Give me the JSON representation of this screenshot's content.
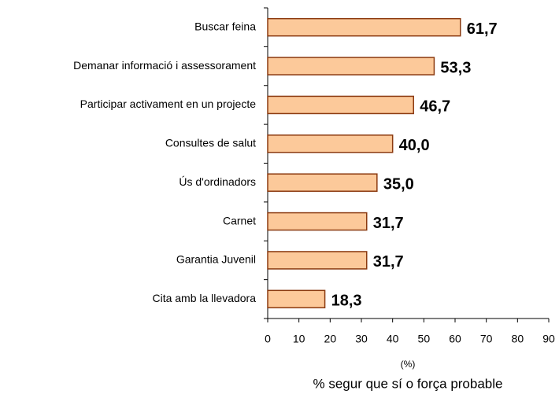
{
  "chart_data": {
    "type": "bar",
    "orientation": "horizontal",
    "categories": [
      "Buscar feina",
      "Demanar informació i assessorament",
      "Participar activament en un projecte",
      "Consultes de salut",
      "Ús d'ordinadors",
      "Carnet",
      "Garantia Juvenil",
      "Cita amb la llevadora"
    ],
    "values": [
      61.7,
      53.3,
      46.7,
      40.0,
      35.0,
      31.7,
      31.7,
      18.3
    ],
    "value_labels": [
      "61,7",
      "53,3",
      "46,7",
      "40,0",
      "35,0",
      "31,7",
      "31,7",
      "18,3"
    ],
    "color": "#fcc99a",
    "edgecolor": "#8b3a10",
    "xlim": [
      0,
      90
    ],
    "xticks": [
      0,
      10,
      20,
      30,
      40,
      50,
      60,
      70,
      80,
      90
    ],
    "xlabel": "(%)",
    "note": "% segur que sí o força probable"
  }
}
